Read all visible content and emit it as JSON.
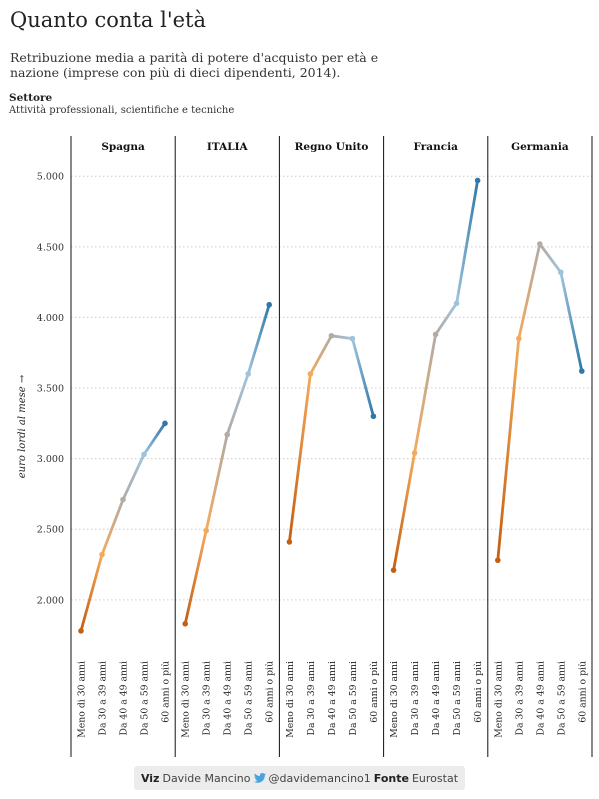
{
  "header": {
    "title": "Quanto conta l'età",
    "subtitle": "Retribuzione media a parità di potere d'acquisto per età e nazione (imprese con più di dieci dipendenti, 2014).",
    "sector_heading": "Settore",
    "sector_value": "Attività professionali, scientifiche e tecniche"
  },
  "footer": {
    "viz_label": "Viz",
    "viz_author": "Davide Mancino",
    "twitter_icon": "twitter-bird-icon",
    "twitter_handle": "@davidemancino1",
    "source_label": "Fonte",
    "source_value": "Eurostat"
  },
  "colors": {
    "gradient": [
      "#c45f12",
      "#f3aa5d",
      "#b2aba6",
      "#9ec4dd",
      "#2f78a8"
    ],
    "grid": "#cccccc",
    "divider": "#111111"
  },
  "chart_data": {
    "type": "line",
    "ylabel": "euro lordi al mese →",
    "ylim": [
      1680,
      5200
    ],
    "yticks": [
      2000,
      2500,
      3000,
      3500,
      4000,
      4500,
      5000
    ],
    "ytick_labels": [
      "2.000",
      "2.500",
      "3.000",
      "3.500",
      "4.000",
      "4.500",
      "5.000"
    ],
    "categories": [
      "Meno di 30 anni",
      "Da 30 a 39 anni",
      "Da 40 a 49 anni",
      "Da 50 a 59 anni",
      "60 anni o più"
    ],
    "grid": true,
    "series": [
      {
        "name": "Spagna",
        "values": [
          1780,
          2320,
          2710,
          3030,
          3250
        ]
      },
      {
        "name": "ITALIA",
        "values": [
          1830,
          2490,
          3170,
          3600,
          4090
        ]
      },
      {
        "name": "Regno Unito",
        "values": [
          2410,
          3600,
          3870,
          3850,
          3300
        ]
      },
      {
        "name": "Francia",
        "values": [
          2210,
          3040,
          3880,
          4100,
          4970
        ]
      },
      {
        "name": "Germania",
        "values": [
          2280,
          3850,
          4520,
          4320,
          3620
        ]
      }
    ]
  }
}
